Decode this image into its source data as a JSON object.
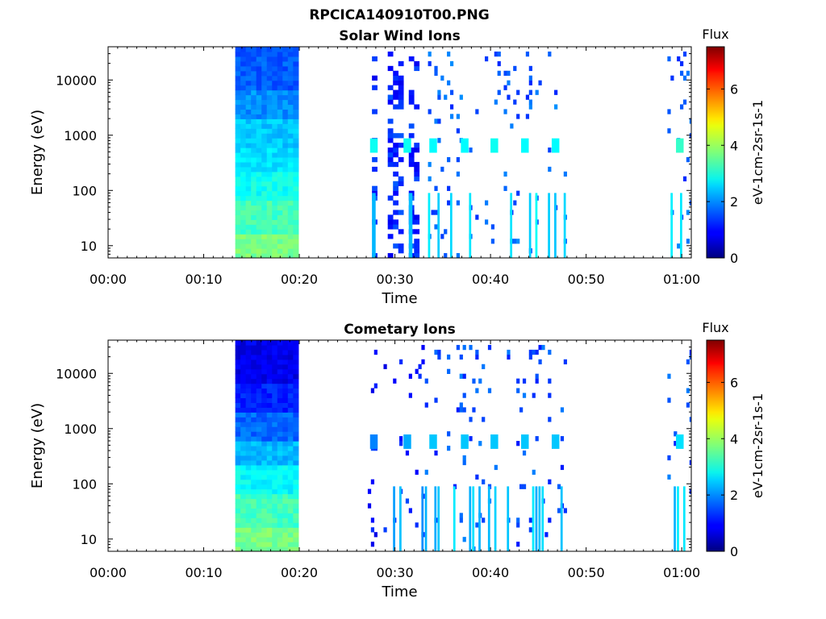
{
  "figure": {
    "title": "RPCICA140910T00.PNG"
  },
  "chart_data": [
    {
      "type": "heatmap",
      "title": "Solar Wind Ions",
      "xlabel": "Time",
      "ylabel": "Energy (eV)",
      "xlim_minutes": [
        0,
        61
      ],
      "x_ticks": [
        "00:00",
        "00:10",
        "00:20",
        "00:30",
        "00:40",
        "00:50",
        "01:00"
      ],
      "y_scale": "log",
      "ylim": [
        6,
        40000
      ],
      "y_ticks": [
        "10",
        "100",
        "1000",
        "10000"
      ],
      "colorbar": {
        "label_top": "Flux",
        "label": "eV-1cm-2sr-1s-1",
        "ticks": [
          "0",
          "2",
          "4",
          "6"
        ],
        "range": [
          0,
          7.5
        ]
      },
      "blocks": [
        {
          "t0": 13.3,
          "t1": 19.5,
          "e0": 6,
          "e1": 40000,
          "levels": [
            [
              6,
              15,
              3.7
            ],
            [
              15,
              70,
              3.3
            ],
            [
              70,
              200,
              2.9
            ],
            [
              200,
              600,
              2.6
            ],
            [
              600,
              2000,
              2.4
            ],
            [
              2000,
              6000,
              2.0
            ],
            [
              6000,
              40000,
              1.6
            ]
          ]
        }
      ],
      "bursts": [
        {
          "t0": 26.5,
          "t1": 32.8,
          "e0": 6,
          "e1": 35000,
          "level": 1.2
        },
        {
          "t0": 32.8,
          "t1": 48.3,
          "e0": 6,
          "e1": 35000,
          "level": 1.6,
          "sparse": true
        },
        {
          "t0": 58.5,
          "t1": 61.0,
          "e0": 6,
          "e1": 30000,
          "level": 1.6,
          "sparse": true
        }
      ],
      "peaks": [
        {
          "t": 27.8,
          "e": 650,
          "level": 2.9
        },
        {
          "t": 31.3,
          "e": 650,
          "level": 2.9
        },
        {
          "t": 34.0,
          "e": 650,
          "level": 2.8
        },
        {
          "t": 37.3,
          "e": 650,
          "level": 2.8
        },
        {
          "t": 40.4,
          "e": 650,
          "level": 2.9
        },
        {
          "t": 43.6,
          "e": 650,
          "level": 2.8
        },
        {
          "t": 46.8,
          "e": 650,
          "level": 2.8
        },
        {
          "t": 59.8,
          "e": 650,
          "level": 3.2
        }
      ]
    },
    {
      "type": "heatmap",
      "title": "Cometary Ions",
      "xlabel": "Time",
      "ylabel": "Energy (eV)",
      "xlim_minutes": [
        0,
        61
      ],
      "x_ticks": [
        "00:00",
        "00:10",
        "00:20",
        "00:30",
        "00:40",
        "00:50",
        "01:00"
      ],
      "y_scale": "log",
      "ylim": [
        6,
        40000
      ],
      "y_ticks": [
        "10",
        "100",
        "1000",
        "10000"
      ],
      "colorbar": {
        "label_top": "Flux",
        "label": "eV-1cm-2sr-1s-1",
        "ticks": [
          "0",
          "2",
          "4",
          "6"
        ],
        "range": [
          0,
          7.5
        ]
      },
      "blocks": [
        {
          "t0": 13.3,
          "t1": 19.5,
          "e0": 6,
          "e1": 40000,
          "levels": [
            [
              6,
              15,
              3.7
            ],
            [
              15,
              70,
              3.3
            ],
            [
              70,
              200,
              2.8
            ],
            [
              200,
              600,
              2.3
            ],
            [
              600,
              2000,
              1.7
            ],
            [
              2000,
              6000,
              1.2
            ],
            [
              6000,
              40000,
              0.8
            ]
          ]
        }
      ],
      "bursts": [
        {
          "t0": 26.5,
          "t1": 32.8,
          "e0": 6,
          "e1": 35000,
          "level": 1.1,
          "sparse": true
        },
        {
          "t0": 32.8,
          "t1": 48.3,
          "e0": 6,
          "e1": 30000,
          "level": 1.5,
          "sparse": true
        },
        {
          "t0": 58.5,
          "t1": 61.0,
          "e0": 6,
          "e1": 30000,
          "level": 1.5,
          "sparse": true
        }
      ],
      "peaks": [
        {
          "t": 27.8,
          "e": 580,
          "level": 1.9
        },
        {
          "t": 31.3,
          "e": 580,
          "level": 2.2
        },
        {
          "t": 34.0,
          "e": 580,
          "level": 2.4
        },
        {
          "t": 37.3,
          "e": 580,
          "level": 2.4
        },
        {
          "t": 40.4,
          "e": 580,
          "level": 2.4
        },
        {
          "t": 43.6,
          "e": 580,
          "level": 2.4
        },
        {
          "t": 46.8,
          "e": 580,
          "level": 2.4
        },
        {
          "t": 59.8,
          "e": 580,
          "level": 2.6
        }
      ]
    }
  ]
}
